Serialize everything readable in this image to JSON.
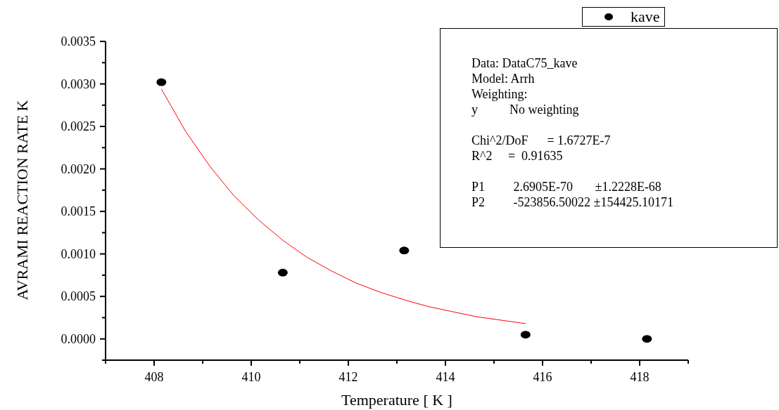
{
  "chart_data": {
    "type": "scatter",
    "xlabel": "Temperature [ K ]",
    "ylabel": "AVRAMI REACTION RATE K",
    "xlim": [
      407,
      419
    ],
    "xticks": [
      {
        "value": 407,
        "label": null
      },
      408,
      {
        "value": 409,
        "label": null
      },
      410,
      {
        "value": 411,
        "label": null
      },
      412,
      {
        "value": 413,
        "label": null
      },
      414,
      {
        "value": 415,
        "label": null
      },
      416,
      {
        "value": 417,
        "label": null
      },
      418,
      {
        "value": 419,
        "label": null
      }
    ],
    "ylim": [
      -0.00025,
      0.0035
    ],
    "yticks": [
      {
        "value": -0.00025,
        "label": null
      },
      {
        "value": 0,
        "label": "0.0000"
      },
      {
        "value": 0.00025,
        "label": null
      },
      {
        "value": 0.0005,
        "label": "0.0005"
      },
      {
        "value": 0.00075,
        "label": null
      },
      {
        "value": 0.001,
        "label": "0.0010"
      },
      {
        "value": 0.00125,
        "label": null
      },
      {
        "value": 0.0015,
        "label": "0.0015"
      },
      {
        "value": 0.00175,
        "label": null
      },
      {
        "value": 0.002,
        "label": "0.0020"
      },
      {
        "value": 0.00225,
        "label": null
      },
      {
        "value": 0.0025,
        "label": "0.0025"
      },
      {
        "value": 0.00275,
        "label": null
      },
      {
        "value": 0.003,
        "label": "0.0030"
      },
      {
        "value": 0.00325,
        "label": null
      },
      {
        "value": 0.0035,
        "label": "0.0035"
      }
    ],
    "grid": false,
    "legend": "top right",
    "series": [
      {
        "name": "kave",
        "marker": "circle",
        "color": "#000000",
        "x": [
          408.15,
          410.65,
          413.15,
          415.65,
          418.15
        ],
        "values": [
          0.00302,
          0.00078,
          0.00104,
          5e-05,
          0
        ]
      },
      {
        "type": "line",
        "marker": "none",
        "line_style": "solid",
        "color": "#ff0000",
        "x": [
          408.15,
          408.65,
          409.15,
          409.65,
          410.15,
          410.65,
          411.15,
          411.65,
          412.15,
          412.65,
          413.15,
          413.65,
          414.15,
          414.65,
          415.15,
          415.65
        ],
        "values": [
          0.00294,
          0.00244,
          0.00203,
          0.00168,
          0.0014,
          0.00116,
          0.00096,
          0.0008,
          0.00066,
          0.00055,
          0.00046,
          0.00038,
          0.00032,
          0.00026,
          0.00022,
          0.00018
        ]
      }
    ],
    "annotations": [
      "Data: DataC75_kave",
      "Model: Arrh",
      "Weighting:",
      "y          No weighting",
      "Chi^2/DoF      = 1.6727E-7",
      "R^2     =  0.91635",
      "P1         2.6905E-70       ±1.2228E-68",
      "P2         -523856.50022 ±154425.10171"
    ]
  }
}
